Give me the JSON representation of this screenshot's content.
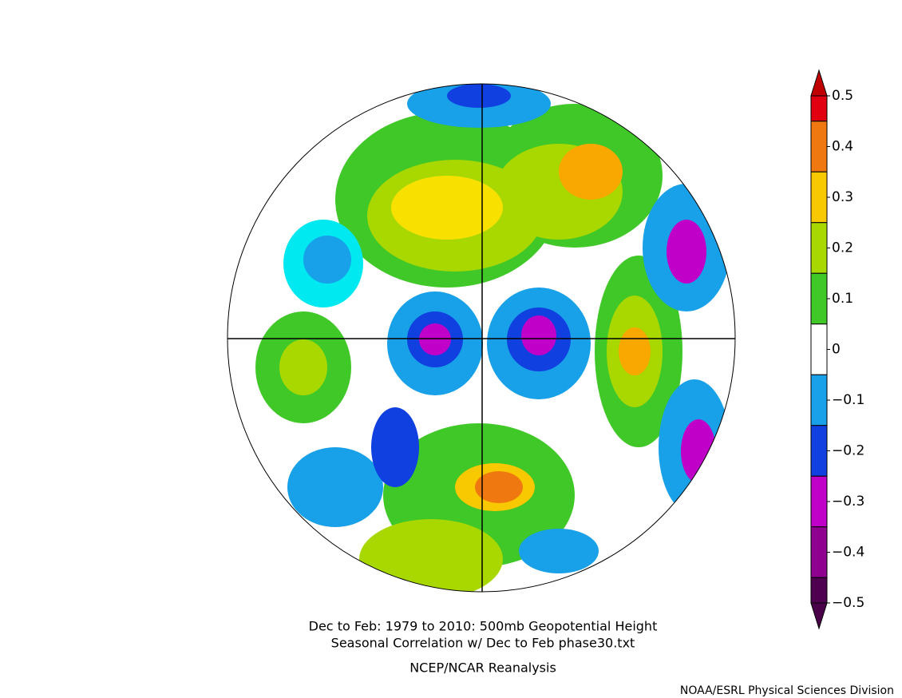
{
  "title_lines": [
    "Dec to Feb: 1979 to 2010: 500mb Geopotential Height",
    "Seasonal Correlation w/ Dec to Feb phase30.txt"
  ],
  "source": "NCEP/NCAR Reanalysis",
  "credit": "NOAA/ESRL Physical Sciences Division",
  "colorbar": {
    "ticks": [
      0.5,
      0.4,
      0.3,
      0.2,
      0.1,
      0,
      {
        "value": -0.1,
        "label": "−0.1"
      },
      {
        "value": -0.2,
        "label": "−0.2"
      },
      {
        "value": -0.3,
        "label": "−0.3"
      },
      {
        "value": -0.4,
        "label": "−0.4"
      },
      {
        "value": -0.5,
        "label": "−0.5"
      }
    ],
    "colors": [
      "#e00010",
      "#f07810",
      "#f8c800",
      "#a8d800",
      "#40c828",
      "#ffffff",
      "#18a0e8",
      "#1040e0",
      "#c000c8",
      "#900090",
      "#500050"
    ],
    "over_color": "#c00000",
    "under_color": "#4a0048"
  }
}
